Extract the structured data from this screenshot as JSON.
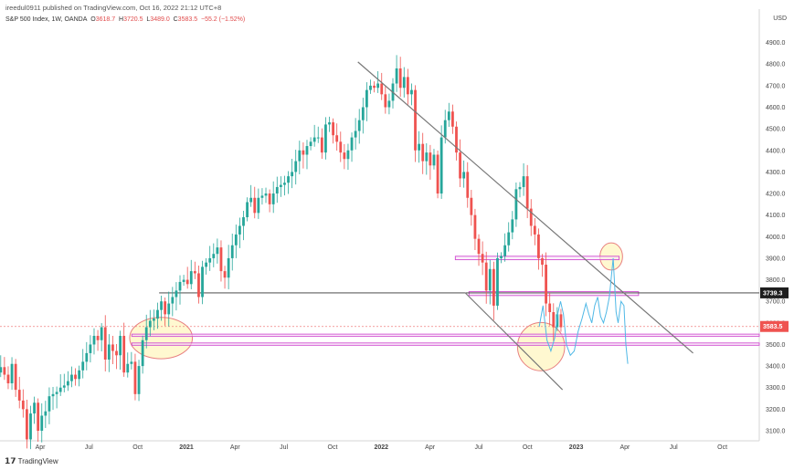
{
  "header": {
    "published": "ireedul0911 published on TradingView.com, Oct 16, 2022 21:12 UTC+8",
    "symbol": "S&P 500 Index, 1W, OANDA",
    "open_label": "O",
    "open": "3618.7",
    "high_label": "H",
    "high": "3720.5",
    "low_label": "L",
    "low": "3489.0",
    "close_label": "C",
    "close": "3583.5",
    "change": "−55.2 (−1.52%)"
  },
  "currency": "USD",
  "brand": "TradingView",
  "colors": {
    "up": "#26a69a",
    "down": "#ef5350",
    "trend": "#787878",
    "zone": "#d04bd0",
    "ellipse_fill": "#fff7c8",
    "ellipse_stroke": "#e88080",
    "projection": "#4fb8e6",
    "level": "#333333",
    "price_dotted": "#f08080"
  },
  "chart_data": {
    "type": "candlestick",
    "title": "S&P 500 Index, 1W, OANDA",
    "ylim": [
      3050,
      4960
    ],
    "y_ticks": [
      3100,
      3200,
      3300,
      3400,
      3500,
      3600,
      3700,
      3800,
      3900,
      4000,
      4100,
      4200,
      4300,
      4400,
      4500,
      4600,
      4700,
      4800,
      4900
    ],
    "y_tick_labels": [
      "3100.0",
      "3200.0",
      "3300.0",
      "3400.0",
      "3500.0",
      "3600.0",
      "3700.0",
      "3800.0",
      "3900.0",
      "4000.0",
      "4100.0",
      "4200.0",
      "4300.0",
      "4400.0",
      "4500.0",
      "4600.0",
      "4700.0",
      "4800.0",
      "4900.0"
    ],
    "x_range": [
      2020.0,
      2023.95
    ],
    "x_ticks": [
      2020.25,
      2020.5,
      2020.75,
      2021.0,
      2021.25,
      2021.5,
      2021.75,
      2022.0,
      2022.25,
      2022.5,
      2022.75,
      2023.0,
      2023.25,
      2023.5,
      2023.75
    ],
    "x_tick_labels": [
      "Apr",
      "Jul",
      "Oct",
      "2021",
      "Apr",
      "Jul",
      "Oct",
      "2022",
      "Apr",
      "Jul",
      "Oct",
      "2023",
      "Apr",
      "Jul",
      "Oct"
    ],
    "x_bold": [
      "2021",
      "2022",
      "2023"
    ],
    "closes_start": 3380,
    "closes": [
      3370,
      3395,
      3360,
      3320,
      3410,
      3290,
      3240,
      3200,
      3060,
      3180,
      3230,
      3100,
      3170,
      3190,
      3260,
      3270,
      3280,
      3300,
      3310,
      3330,
      3360,
      3340,
      3380,
      3420,
      3460,
      3500,
      3540,
      3520,
      3580,
      3430,
      3500,
      3470,
      3450,
      3540,
      3370,
      3410,
      3420,
      3270,
      3400,
      3520,
      3580,
      3610,
      3620,
      3660,
      3700,
      3640,
      3690,
      3720,
      3750,
      3790,
      3800,
      3780,
      3840,
      3830,
      3720,
      3860,
      3880,
      3900,
      3920,
      3950,
      3840,
      3810,
      3900,
      3960,
      4010,
      4050,
      4090,
      4160,
      4180,
      4110,
      4180,
      4190,
      4200,
      4150,
      4200,
      4230,
      4240,
      4250,
      4280,
      4300,
      4350,
      4400,
      4380,
      4420,
      4440,
      4460,
      4460,
      4390,
      4520,
      4530,
      4470,
      4440,
      4390,
      4360,
      4400,
      4460,
      4490,
      4540,
      4600,
      4680,
      4700,
      4690,
      4710,
      4660,
      4600,
      4630,
      4710,
      4780,
      4690,
      4740,
      4660,
      4680,
      4400,
      4430,
      4350,
      4390,
      4330,
      4380,
      4200,
      4460,
      4540,
      4580,
      4510,
      4390,
      4270,
      4300,
      4180,
      4100,
      3990,
      3920,
      3880,
      3750,
      3850,
      3680,
      3900,
      3910,
      3960,
      4020,
      4080,
      4220,
      4230,
      4280,
      4130,
      4050,
      4010,
      3900,
      3870,
      3690,
      3650,
      3580,
      3640,
      3580
    ],
    "annotations": {
      "last_price_label": "3583.5",
      "level_label": "3739.3",
      "level": 3739.3,
      "downtrend": [
        [
          2021.88,
          4810
        ],
        [
          2023.6,
          3460
        ]
      ],
      "lower_channel": [
        [
          2022.43,
          3740
        ],
        [
          2022.93,
          3290
        ]
      ],
      "zones": [
        {
          "x": [
            2022.38,
            2023.22
          ],
          "y": [
            3893,
            3909
          ]
        },
        {
          "x": [
            2022.45,
            2023.32
          ],
          "y": [
            3727,
            3745
          ]
        },
        {
          "x": [
            2020.72,
            2023.95
          ],
          "y": [
            3540,
            3548
          ]
        },
        {
          "x": [
            2020.72,
            2023.95
          ],
          "y": [
            3500,
            3507
          ]
        }
      ],
      "ellipses": [
        {
          "cx": 2020.87,
          "cy": 3530,
          "rx": 0.161,
          "ry": 96
        },
        {
          "cx": 2022.82,
          "cy": 3490,
          "rx": 0.121,
          "ry": 112
        },
        {
          "cx": 2023.18,
          "cy": 3908,
          "rx": 0.058,
          "ry": 63
        }
      ],
      "projection": [
        [
          2022.81,
          3582
        ],
        [
          2022.83,
          3680
        ],
        [
          2022.85,
          3520
        ],
        [
          2022.87,
          3470
        ],
        [
          2022.89,
          3530
        ],
        [
          2022.905,
          3640
        ],
        [
          2022.92,
          3700
        ],
        [
          2022.935,
          3640
        ],
        [
          2022.95,
          3500
        ],
        [
          2022.97,
          3450
        ],
        [
          2022.99,
          3470
        ],
        [
          2023.01,
          3560
        ],
        [
          2023.03,
          3620
        ],
        [
          2023.05,
          3690
        ],
        [
          2023.065,
          3640
        ],
        [
          2023.08,
          3600
        ],
        [
          2023.095,
          3680
        ],
        [
          2023.11,
          3720
        ],
        [
          2023.125,
          3630
        ],
        [
          2023.14,
          3600
        ],
        [
          2023.155,
          3650
        ],
        [
          2023.17,
          3720
        ],
        [
          2023.19,
          3900
        ],
        [
          2023.205,
          3650
        ],
        [
          2023.215,
          3600
        ],
        [
          2023.23,
          3700
        ],
        [
          2023.245,
          3680
        ],
        [
          2023.255,
          3500
        ],
        [
          2023.265,
          3410
        ]
      ]
    }
  }
}
